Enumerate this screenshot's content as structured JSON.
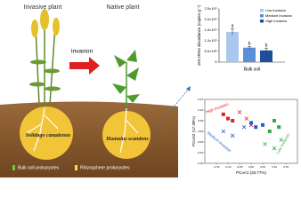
{
  "illustration": {
    "invasive_label": "Invasive plant",
    "native_label": "Native plant",
    "arrow_label": "Invasion",
    "invasive_species": "Solidago canadensis",
    "native_species": "Humulus scandens",
    "legend": [
      "Bulk soil prokaryotes",
      "Rhizosphere prokaryotes"
    ]
  },
  "chart_data": [
    {
      "type": "bar",
      "y_label": "16S rRNA abundance (copies g⁻¹)",
      "x_label": "Bulk soil",
      "categories": [
        "Low invasion",
        "Medium invasion",
        "High invasion"
      ],
      "values": [
        1420000000,
        680000000,
        550000000
      ],
      "errors": [
        150000000,
        60000000,
        110000000
      ],
      "sig_letters": [
        "a",
        "b",
        "b"
      ],
      "colors": [
        "#a9c8ec",
        "#5b8fd6",
        "#1f4e9a"
      ],
      "ylim": [
        0,
        2500000000
      ],
      "yticks": [
        0,
        {
          "value": 500000000,
          "label": "5.0×10⁸"
        },
        {
          "value": 1000000000,
          "label": "1.0×10⁹"
        },
        {
          "value": 1500000000,
          "label": "1.5×10⁹"
        },
        {
          "value": 2000000000,
          "label": "2.0×10⁹"
        },
        {
          "value": 2500000000,
          "label": "2.5×10⁹"
        }
      ]
    },
    {
      "type": "scatter",
      "x_label": "PCoA1 (33.77%)",
      "y_label": "PCoA2 (17.38%)",
      "xlim": [
        -0.2,
        0.2
      ],
      "ylim": [
        -0.15,
        0.15
      ],
      "xticks": [
        -0.15,
        {
          "value": -0.1,
          "label": "-0.10"
        },
        -0.05,
        {
          "value": 0,
          "label": "0.00"
        },
        0.05,
        {
          "value": 0.1,
          "label": "0.10"
        },
        0.15
      ],
      "yticks": [
        -0.15,
        {
          "value": -0.1,
          "label": "-0.10"
        },
        -0.05,
        {
          "value": 0,
          "label": "0.00"
        },
        0.05,
        {
          "value": 0.1,
          "label": "0.10"
        },
        0.15
      ],
      "series": [
        {
          "name": "High invasion",
          "color": "#e02020",
          "x": [
            -0.12,
            -0.1,
            -0.08,
            -0.05,
            -0.02,
            0.0
          ],
          "values": [
            0.08,
            0.06,
            0.05,
            0.09,
            0.06,
            0.03
          ],
          "markers": [
            "square",
            "square",
            "square",
            "cross",
            "cross",
            "cross"
          ]
        },
        {
          "name": "Medium invasion",
          "color": "#2a5bd7",
          "x": [
            0.0,
            0.02,
            0.05,
            -0.12,
            -0.08,
            -0.03
          ],
          "values": [
            0.04,
            0.02,
            0.03,
            0.0,
            -0.02,
            0.02
          ],
          "markers": [
            "square",
            "square",
            "square",
            "cross",
            "cross",
            "cross"
          ]
        },
        {
          "name": "Low invasion",
          "color": "#2ea84a",
          "x": [
            0.1,
            0.12,
            0.08,
            0.06,
            0.1,
            0.13
          ],
          "values": [
            0.05,
            0.02,
            0.0,
            -0.06,
            -0.08,
            -0.04
          ],
          "markers": [
            "square",
            "square",
            "square",
            "cross",
            "cross",
            "cross"
          ]
        }
      ]
    }
  ]
}
